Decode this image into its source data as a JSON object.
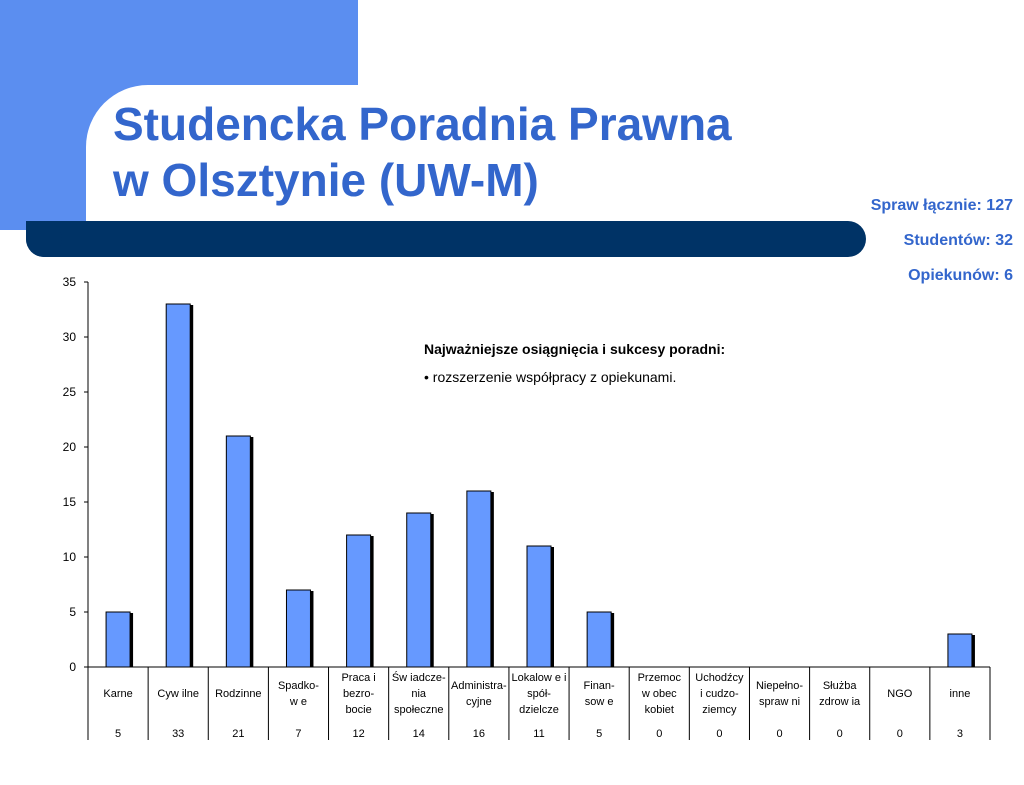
{
  "title": {
    "line1": "Studencka Poradnia Prawna",
    "line2": "w Olsztynie (UW-M)"
  },
  "stats": {
    "cases": "Spraw łącznie: 127",
    "students": "Studentów: 32",
    "supervisors": "Opiekunów: 6"
  },
  "notes": {
    "heading": "Najważniejsze osiągnięcia i sukcesy poradni:",
    "items": [
      "• rozszerzenie współpracy z opiekunami."
    ]
  },
  "colors": {
    "accent": "#5b8ef0",
    "bar_dark": "#003366",
    "title_blue": "#3366cc",
    "bar_fill": "#6699ff"
  },
  "chart_data": {
    "type": "bar",
    "categories": [
      [
        "Karne"
      ],
      [
        "Cyw ilne"
      ],
      [
        "Rodzinne"
      ],
      [
        "Spadko-",
        "w e"
      ],
      [
        "Praca i",
        "bezro-",
        "bocie"
      ],
      [
        "Św iadcze-",
        "nia",
        "społeczne"
      ],
      [
        "Administra-",
        "cyjne"
      ],
      [
        "Lokalow e i",
        "spół-",
        "dzielcze"
      ],
      [
        "Finan-",
        "sow e"
      ],
      [
        "Przemoc",
        "w obec",
        "kobiet"
      ],
      [
        "Uchodźcy",
        "i cudzo-",
        "ziemcy"
      ],
      [
        "Niepełno-",
        "spraw ni"
      ],
      [
        "Służba",
        "zdrow ia"
      ],
      [
        "NGO"
      ],
      [
        "inne"
      ]
    ],
    "values": [
      5,
      33,
      21,
      7,
      12,
      14,
      16,
      11,
      5,
      0,
      0,
      0,
      0,
      0,
      3
    ],
    "value_labels": [
      "5",
      "33",
      "21",
      "7",
      "12",
      "14",
      "16",
      "11",
      "5",
      "0",
      "0",
      "0",
      "0",
      "0",
      "3"
    ],
    "ylim": [
      0,
      35
    ],
    "yticks": [
      0,
      5,
      10,
      15,
      20,
      25,
      30,
      35
    ],
    "grid": false,
    "legend": "none",
    "data_table": true
  }
}
